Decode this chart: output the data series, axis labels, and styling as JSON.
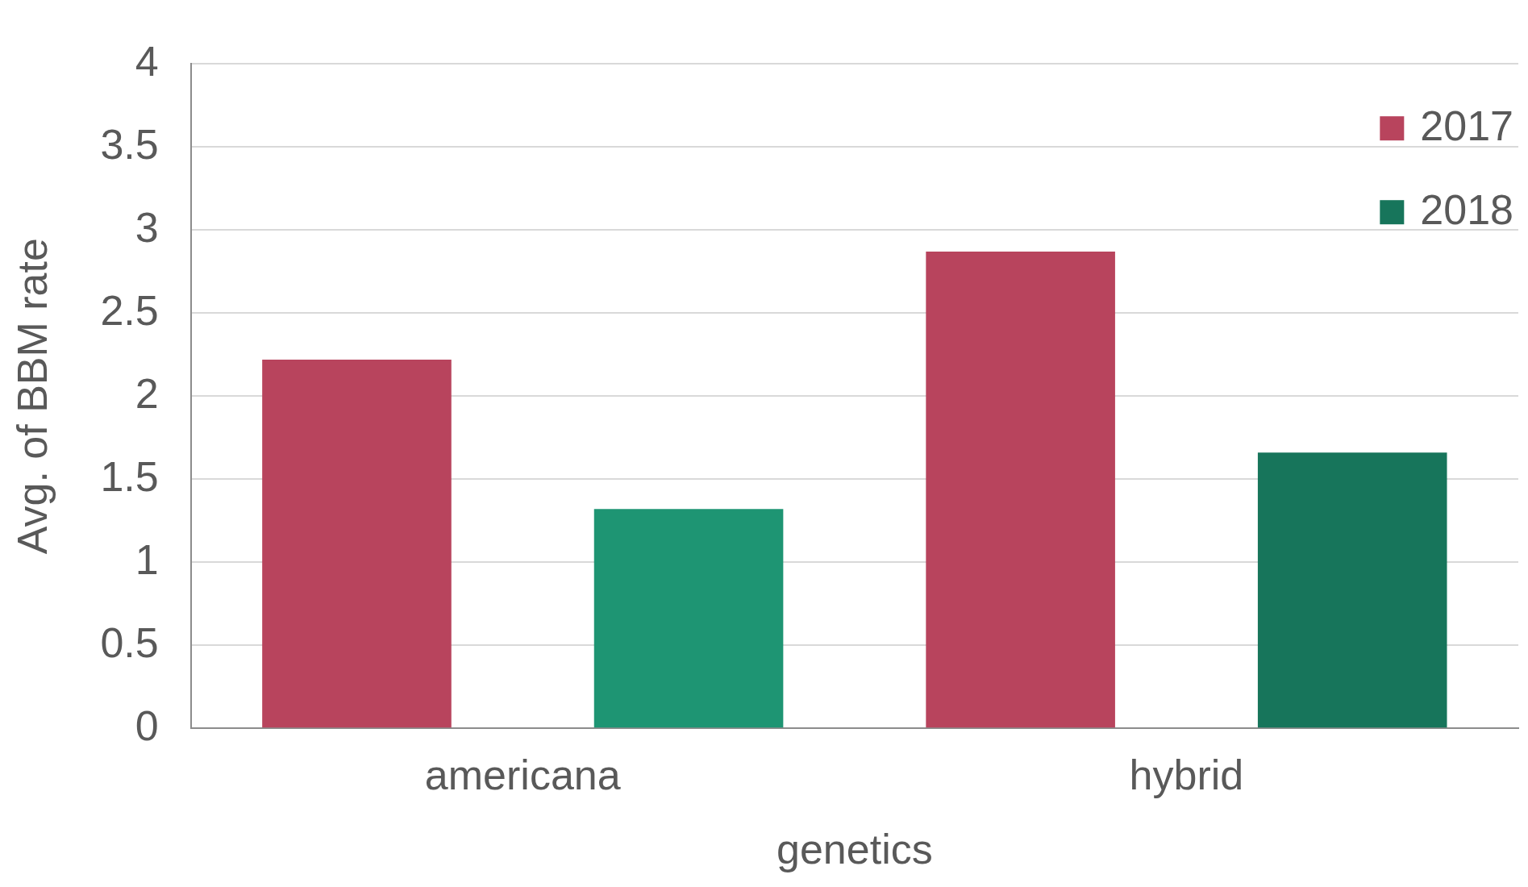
{
  "chart_data": {
    "type": "bar",
    "xlabel": "genetics",
    "ylabel": "Avg. of BBM rate",
    "categories": [
      "americana",
      "hybrid"
    ],
    "series": [
      {
        "name": "2017",
        "color": "#b8445d",
        "values": [
          2.22,
          2.87
        ]
      },
      {
        "name": "2018",
        "color": "#17755b",
        "colors": [
          "#1e9573",
          "#17755b"
        ],
        "values": [
          1.32,
          1.66
        ]
      }
    ],
    "ylim": [
      0,
      4
    ],
    "yticks": [
      0,
      0.5,
      1,
      1.5,
      2,
      2.5,
      3,
      3.5,
      4
    ],
    "grid": "y",
    "legend": "top right"
  }
}
